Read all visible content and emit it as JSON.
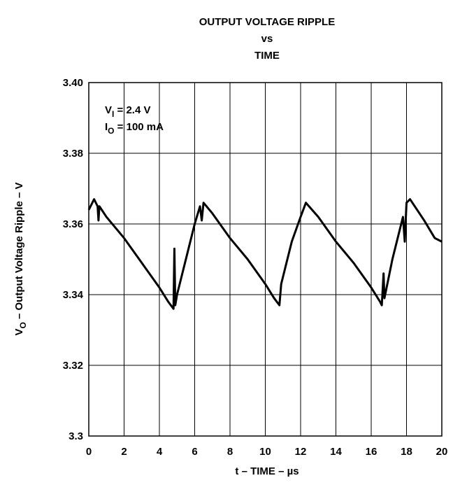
{
  "chart_data": {
    "type": "line",
    "title": [
      "OUTPUT VOLTAGE RIPPLE",
      "vs",
      "TIME"
    ],
    "xlabel": "t – TIME – µs",
    "ylabel": {
      "main": "V",
      "sub": "O",
      "text": " – Output Voltage Ripple – V"
    },
    "annotations": [
      {
        "main": "V",
        "sub": "I",
        "text": " = 2.4 V"
      },
      {
        "main": "I",
        "sub": "O",
        "text": " = 100 mA"
      }
    ],
    "x": [
      0,
      0.3,
      0.5,
      0.55,
      0.6,
      1,
      2,
      3,
      4,
      4.5,
      4.8,
      4.85,
      4.9,
      5.0,
      5.5,
      6,
      6.3,
      6.4,
      6.5,
      7,
      8,
      9,
      10,
      10.5,
      10.8,
      10.9,
      11.5,
      12,
      12.3,
      13,
      14,
      15,
      16,
      16.5,
      16.6,
      16.7,
      16.75,
      17.2,
      17.8,
      17.9,
      18,
      18.2,
      19,
      19.6,
      20
    ],
    "series": [
      {
        "name": "ripple",
        "color": "#000000",
        "values": [
          3.364,
          3.367,
          3.365,
          3.361,
          3.365,
          3.362,
          3.356,
          3.349,
          3.342,
          3.338,
          3.336,
          3.353,
          3.337,
          3.34,
          3.35,
          3.36,
          3.365,
          3.361,
          3.366,
          3.363,
          3.356,
          3.35,
          3.343,
          3.339,
          3.337,
          3.343,
          3.355,
          3.362,
          3.366,
          3.362,
          3.355,
          3.349,
          3.342,
          3.338,
          3.337,
          3.346,
          3.339,
          3.35,
          3.362,
          3.355,
          3.366,
          3.367,
          3.361,
          3.356,
          3.355
        ]
      }
    ],
    "xlim": [
      0,
      20
    ],
    "xticks": [
      0,
      2,
      4,
      6,
      8,
      10,
      12,
      14,
      16,
      18,
      20
    ],
    "ylim": [
      3.3,
      3.4
    ],
    "yticks": [
      3.3,
      3.32,
      3.34,
      3.36,
      3.38,
      {
        "value": 3.4,
        "label": "3.40"
      }
    ],
    "grid": true
  }
}
